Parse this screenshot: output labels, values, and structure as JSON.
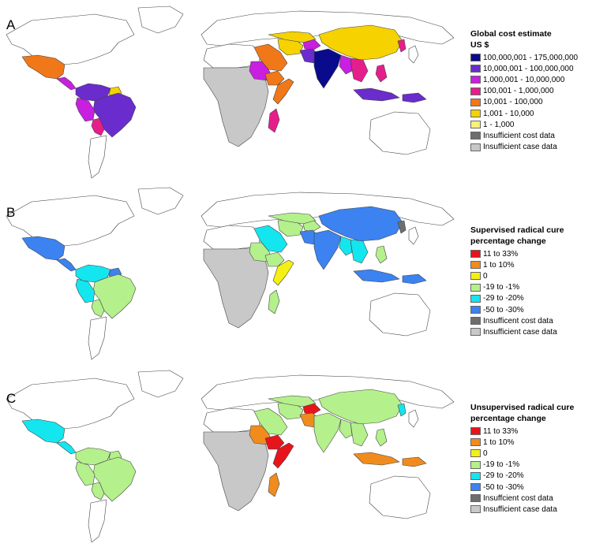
{
  "panels": [
    {
      "letter": "A",
      "legend_title_1": "Global cost estimate",
      "legend_title_2": "US $",
      "legend": [
        {
          "label": "100,000,001 - 175,000,000",
          "color": "#0a0a8c"
        },
        {
          "label": "10,000,001 - 100,000,000",
          "color": "#6a2ccc"
        },
        {
          "label": "1,000,001 - 10,000,000",
          "color": "#c81fe0"
        },
        {
          "label": "100,001 - 1,000,000",
          "color": "#e61e8c"
        },
        {
          "label": "10,001 - 100,000",
          "color": "#f07818"
        },
        {
          "label": "1,001 - 10,000",
          "color": "#f5d200"
        },
        {
          "label": "1 - 1,000",
          "color": "#f7f07a"
        },
        {
          "label": "Insufficient cost data",
          "color": "#6e6e6e"
        },
        {
          "label": "Insufficient case data",
          "color": "#c8c8c8"
        }
      ]
    },
    {
      "letter": "B",
      "legend_title_1": "Supervised radical cure",
      "legend_title_2": "percentage change",
      "legend": [
        {
          "label": "11 to 33%",
          "color": "#e8141c"
        },
        {
          "label": "1 to 10%",
          "color": "#f08c1e"
        },
        {
          "label": "0",
          "color": "#f5f014"
        },
        {
          "label": "-19 to -1%",
          "color": "#b4f08c"
        },
        {
          "label": "-29 to -20%",
          "color": "#14e6f0"
        },
        {
          "label": "-50 to -30%",
          "color": "#3c82f0"
        },
        {
          "label": "Insufficent cost data",
          "color": "#6e6e6e"
        },
        {
          "label": "Insufficient case data",
          "color": "#c8c8c8"
        }
      ]
    },
    {
      "letter": "C",
      "legend_title_1": "Unsupervised radical cure",
      "legend_title_2": "percentage change",
      "legend": [
        {
          "label": "11 to 33%",
          "color": "#e8141c"
        },
        {
          "label": "1 to 10%",
          "color": "#f08c1e"
        },
        {
          "label": "0",
          "color": "#f5f014"
        },
        {
          "label": "-19 to -1%",
          "color": "#b4f08c"
        },
        {
          "label": "-29 to -20%",
          "color": "#14e6f0"
        },
        {
          "label": "-50 to -30%",
          "color": "#3c82f0"
        },
        {
          "label": "Insuffcient cost data",
          "color": "#6e6e6e"
        },
        {
          "label": "Insufficient case data",
          "color": "#c8c8c8"
        }
      ]
    }
  ],
  "region_colors": {
    "A": {
      "mexico": "#f07818",
      "central_america": "#c81fe0",
      "nsa_north": "#6a2ccc",
      "brazil": "#6a2ccc",
      "andes": "#c81fe0",
      "bolivia": "#e61e8c",
      "guianas": "#f5d200",
      "africa_sub": "#c8c8c8",
      "horn": "#f07818",
      "sudan": "#c81fe0",
      "somalia": "#f07818",
      "madagascar": "#e61e8c",
      "arabia": "#f07818",
      "afghanistan": "#c81fe0",
      "central_asia": "#f5d200",
      "iran": "#f5d200",
      "pakistan": "#6a2ccc",
      "india": "#0a0a8c",
      "china": "#f5d200",
      "korea": "#e61e8c",
      "myanmar": "#c81fe0",
      "se_asia": "#e61e8c",
      "philippines": "#e61e8c",
      "indonesia": "#6a2ccc",
      "png": "#6a2ccc"
    },
    "B": {
      "mexico": "#3c82f0",
      "central_america": "#3c82f0",
      "nsa_north": "#14e6f0",
      "brazil": "#b4f08c",
      "andes": "#14e6f0",
      "bolivia": "#b4f08c",
      "guianas": "#3c82f0",
      "africa_sub": "#c8c8c8",
      "horn": "#b4f08c",
      "sudan": "#b4f08c",
      "somalia": "#f5f014",
      "madagascar": "#b4f08c",
      "arabia": "#14e6f0",
      "afghanistan": "#b4f08c",
      "central_asia": "#b4f08c",
      "iran": "#b4f08c",
      "pakistan": "#3c82f0",
      "india": "#3c82f0",
      "china": "#3c82f0",
      "korea": "#6e6e6e",
      "myanmar": "#14e6f0",
      "se_asia": "#14e6f0",
      "philippines": "#b4f08c",
      "indonesia": "#3c82f0",
      "png": "#3c82f0"
    },
    "C": {
      "mexico": "#14e6f0",
      "central_america": "#14e6f0",
      "nsa_north": "#b4f08c",
      "brazil": "#b4f08c",
      "andes": "#b4f08c",
      "bolivia": "#b4f08c",
      "guianas": "#b4f08c",
      "africa_sub": "#c8c8c8",
      "horn": "#e8141c",
      "sudan": "#f08c1e",
      "somalia": "#e8141c",
      "madagascar": "#f08c1e",
      "arabia": "#b4f08c",
      "afghanistan": "#e8141c",
      "central_asia": "#b4f08c",
      "iran": "#b4f08c",
      "pakistan": "#f08c1e",
      "india": "#b4f08c",
      "china": "#b4f08c",
      "korea": "#14e6f0",
      "myanmar": "#b4f08c",
      "se_asia": "#b4f08c",
      "philippines": "#b4f08c",
      "indonesia": "#f08c1e",
      "png": "#f08c1e"
    }
  }
}
